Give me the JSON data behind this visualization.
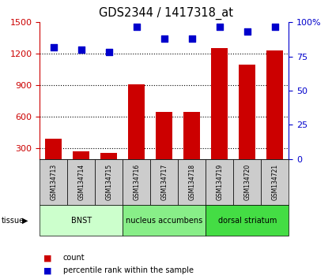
{
  "title": "GDS2344 / 1417318_at",
  "samples": [
    "GSM134713",
    "GSM134714",
    "GSM134715",
    "GSM134716",
    "GSM134717",
    "GSM134718",
    "GSM134719",
    "GSM134720",
    "GSM134721"
  ],
  "counts": [
    390,
    270,
    260,
    910,
    650,
    645,
    1255,
    1100,
    1230
  ],
  "percentiles": [
    82,
    80,
    78,
    97,
    88,
    88,
    97,
    93,
    97
  ],
  "groups": [
    {
      "label": "BNST",
      "start": 0,
      "end": 3,
      "color": "#ccffcc"
    },
    {
      "label": "nucleus accumbens",
      "start": 3,
      "end": 6,
      "color": "#88ee88"
    },
    {
      "label": "dorsal striatum",
      "start": 6,
      "end": 9,
      "color": "#44dd44"
    }
  ],
  "bar_color": "#cc0000",
  "dot_color": "#0000cc",
  "ylim_left": [
    200,
    1500
  ],
  "ylim_right": [
    0,
    100
  ],
  "yticks_left": [
    300,
    600,
    900,
    1200,
    1500
  ],
  "yticks_right": [
    0,
    25,
    50,
    75,
    100
  ],
  "background_color": "#ffffff",
  "sample_bg_color": "#cccccc",
  "legend_count_color": "#cc0000",
  "legend_pct_color": "#0000cc"
}
